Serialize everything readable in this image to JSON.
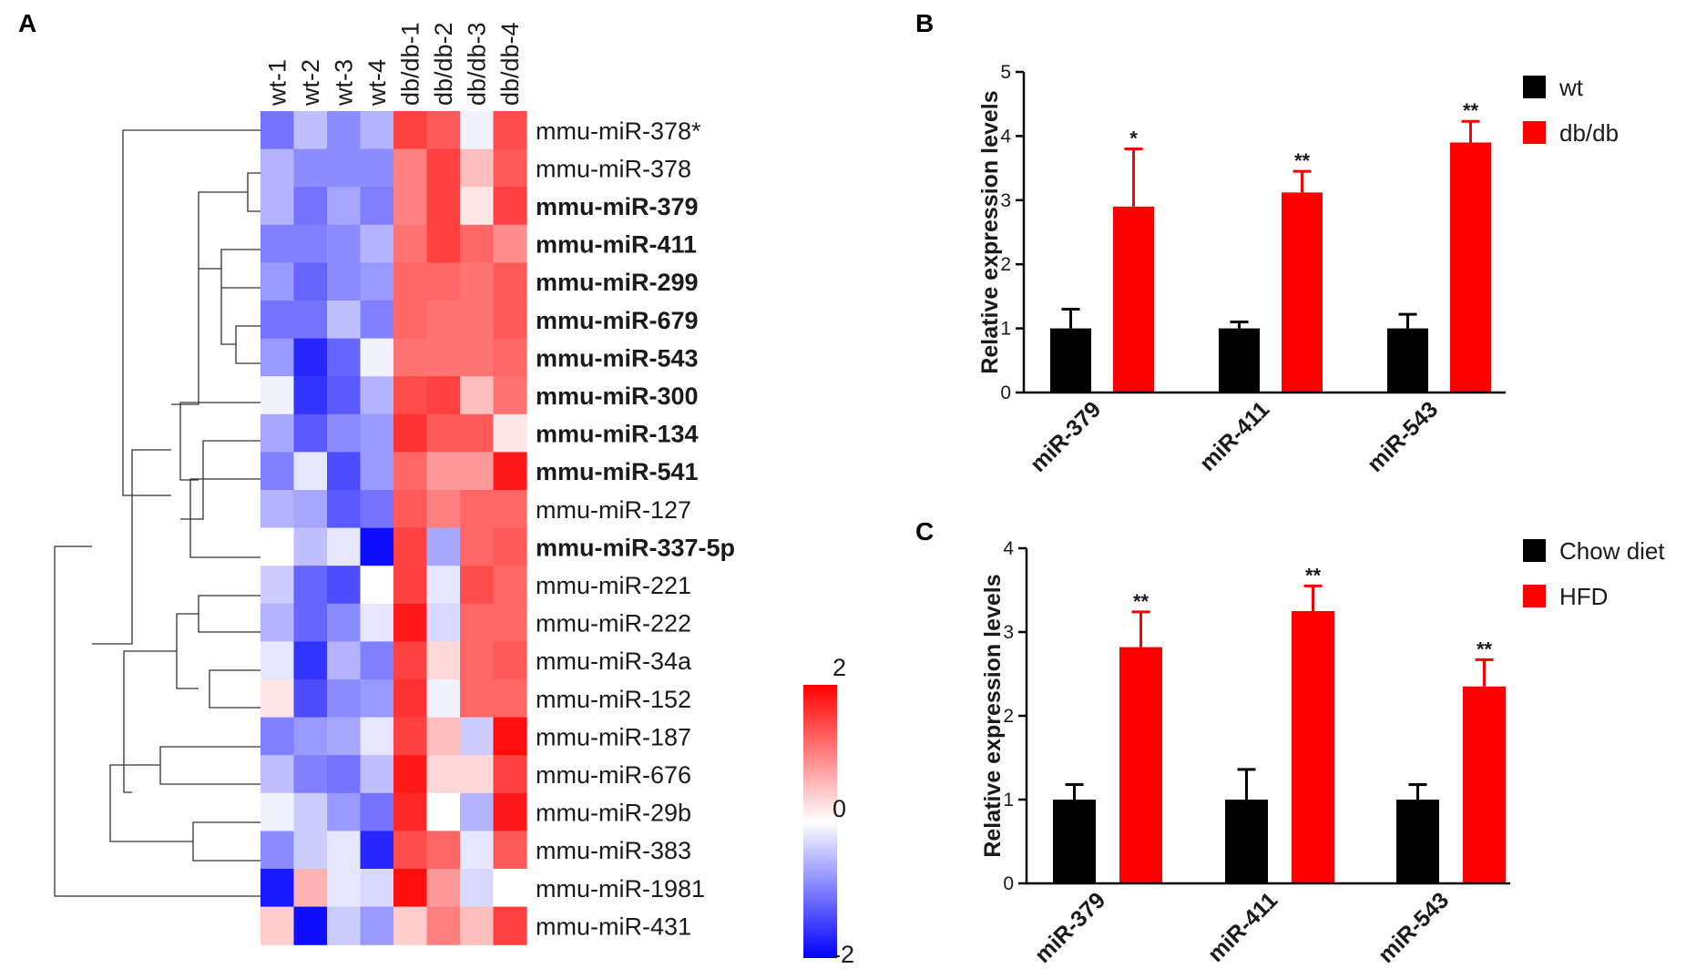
{
  "panels": {
    "A": "A",
    "B": "B",
    "C": "C"
  },
  "chart_data": [
    {
      "type": "heatmap",
      "panel": "A",
      "columns": [
        "wt-1",
        "wt-2",
        "wt-3",
        "wt-4",
        "db/db-1",
        "db/db-2",
        "db/db-3",
        "db/db-4"
      ],
      "rows": [
        {
          "label": "mmu-miR-378*",
          "bold": false,
          "values": [
            -1.1,
            -0.5,
            -0.9,
            -0.6,
            1.5,
            1.3,
            -0.1,
            1.4
          ]
        },
        {
          "label": "mmu-miR-378",
          "bold": false,
          "values": [
            -0.6,
            -0.9,
            -0.9,
            -0.9,
            1.0,
            1.5,
            0.5,
            1.3
          ]
        },
        {
          "label": "mmu-miR-379",
          "bold": true,
          "values": [
            -0.6,
            -1.1,
            -0.7,
            -1.0,
            1.0,
            1.5,
            0.2,
            1.5
          ]
        },
        {
          "label": "mmu-miR-411",
          "bold": true,
          "values": [
            -1.0,
            -1.0,
            -0.9,
            -0.6,
            1.1,
            1.5,
            1.2,
            0.9
          ]
        },
        {
          "label": "mmu-miR-299",
          "bold": true,
          "values": [
            -0.8,
            -1.2,
            -0.9,
            -0.8,
            1.2,
            1.2,
            1.1,
            1.3
          ]
        },
        {
          "label": "mmu-miR-679",
          "bold": true,
          "values": [
            -1.1,
            -1.1,
            -0.5,
            -1.0,
            1.2,
            1.1,
            1.1,
            1.3
          ]
        },
        {
          "label": "mmu-miR-543",
          "bold": true,
          "values": [
            -0.8,
            -1.7,
            -1.2,
            -0.1,
            1.1,
            1.1,
            1.1,
            1.2
          ]
        },
        {
          "label": "mmu-miR-300",
          "bold": true,
          "values": [
            -0.1,
            -1.6,
            -1.3,
            -0.6,
            1.4,
            1.5,
            0.5,
            1.1
          ]
        },
        {
          "label": "mmu-miR-134",
          "bold": true,
          "values": [
            -0.7,
            -1.3,
            -0.9,
            -0.8,
            1.6,
            1.3,
            1.3,
            0.2
          ]
        },
        {
          "label": "mmu-miR-541",
          "bold": true,
          "values": [
            -1.0,
            -0.2,
            -1.4,
            -0.8,
            1.2,
            0.8,
            0.8,
            1.8
          ]
        },
        {
          "label": "mmu-miR-127",
          "bold": false,
          "values": [
            -0.6,
            -0.7,
            -1.3,
            -1.1,
            1.3,
            1.0,
            1.2,
            1.2
          ]
        },
        {
          "label": "mmu-miR-337-5p",
          "bold": true,
          "values": [
            0.0,
            -0.5,
            -0.2,
            -1.9,
            1.5,
            -0.7,
            1.2,
            1.3
          ]
        },
        {
          "label": "mmu-miR-221",
          "bold": false,
          "values": [
            -0.4,
            -1.2,
            -1.4,
            0.0,
            1.5,
            -0.2,
            1.4,
            1.2
          ]
        },
        {
          "label": "mmu-miR-222",
          "bold": false,
          "values": [
            -0.6,
            -1.2,
            -0.9,
            -0.2,
            1.8,
            -0.3,
            1.2,
            1.2
          ]
        },
        {
          "label": "mmu-miR-34a",
          "bold": false,
          "values": [
            -0.2,
            -1.6,
            -0.6,
            -1.0,
            1.5,
            0.3,
            1.2,
            1.3
          ]
        },
        {
          "label": "mmu-miR-152",
          "bold": false,
          "values": [
            0.2,
            -1.4,
            -0.9,
            -0.8,
            1.6,
            -0.1,
            1.2,
            1.2
          ]
        },
        {
          "label": "mmu-miR-187",
          "bold": false,
          "values": [
            -1.0,
            -0.8,
            -0.7,
            -0.2,
            1.5,
            0.5,
            -0.4,
            1.9
          ]
        },
        {
          "label": "mmu-miR-676",
          "bold": false,
          "values": [
            -0.5,
            -1.0,
            -1.1,
            -0.5,
            1.8,
            0.3,
            0.3,
            1.5
          ]
        },
        {
          "label": "mmu-miR-29b",
          "bold": false,
          "values": [
            -0.1,
            -0.4,
            -0.8,
            -1.1,
            1.7,
            0.0,
            -0.6,
            1.8
          ]
        },
        {
          "label": "mmu-miR-383",
          "bold": false,
          "values": [
            -0.9,
            -0.4,
            -0.2,
            -1.7,
            1.4,
            1.2,
            -0.2,
            1.3
          ]
        },
        {
          "label": "mmu-miR-1981",
          "bold": false,
          "values": [
            -1.8,
            0.6,
            -0.2,
            -0.3,
            1.9,
            0.8,
            -0.3,
            0.0
          ]
        },
        {
          "label": "mmu-miR-431",
          "bold": false,
          "values": [
            0.4,
            -1.9,
            -0.4,
            -0.8,
            0.4,
            1.0,
            0.5,
            1.5
          ]
        }
      ],
      "colorbar": {
        "min": -2,
        "mid": 0,
        "max": 2,
        "labels": [
          "2",
          "0",
          "-2"
        ],
        "low_color": "#0000ff",
        "mid_color": "#ffffff",
        "high_color": "#ff0000"
      },
      "dendrogram": true
    },
    {
      "type": "bar",
      "panel": "B",
      "categories": [
        "miR-379",
        "miR-411",
        "miR-543"
      ],
      "series": [
        {
          "name": "wt",
          "color": "#000000",
          "values": [
            1.0,
            1.0,
            1.0
          ],
          "errors": [
            0.3,
            0.1,
            0.22
          ]
        },
        {
          "name": "db/db",
          "color": "#ff0000",
          "values": [
            2.9,
            3.12,
            3.9
          ],
          "errors": [
            0.9,
            0.33,
            0.33
          ]
        }
      ],
      "significance": [
        "*",
        "**",
        "**"
      ],
      "ylabel": "Relative expression levels",
      "ylim": [
        0,
        5
      ],
      "yticks": [
        "0",
        "1",
        "2",
        "3",
        "4",
        "5"
      ]
    },
    {
      "type": "bar",
      "panel": "C",
      "categories": [
        "miR-379",
        "miR-411",
        "miR-543"
      ],
      "series": [
        {
          "name": "Chow diet",
          "color": "#000000",
          "values": [
            1.0,
            1.0,
            1.0
          ],
          "errors": [
            0.18,
            0.36,
            0.18
          ]
        },
        {
          "name": "HFD",
          "color": "#ff0000",
          "values": [
            2.82,
            3.25,
            2.35
          ],
          "errors": [
            0.42,
            0.3,
            0.32
          ]
        }
      ],
      "significance": [
        "**",
        "**",
        "**"
      ],
      "ylabel": "Relative expression levels",
      "ylim": [
        0,
        4
      ],
      "yticks": [
        "0",
        "1",
        "2",
        "3",
        "4"
      ]
    }
  ]
}
